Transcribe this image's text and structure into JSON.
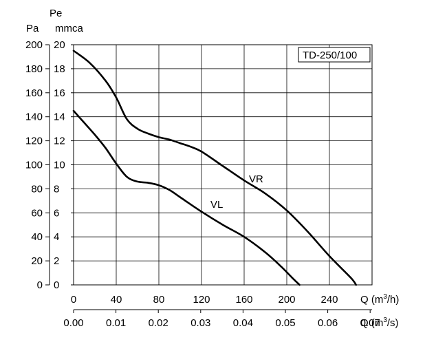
{
  "chart_data": {
    "type": "line",
    "legend_box": "TD-250/100",
    "axes": {
      "y_left_outer": {
        "title": "Pa",
        "range": [
          0,
          200
        ],
        "ticks": [
          "0",
          "20",
          "40",
          "60",
          "80",
          "100",
          "120",
          "140",
          "160",
          "180",
          "200"
        ]
      },
      "y_left_inner": {
        "title_line1": "Pe",
        "title_line2": "mmca",
        "range": [
          0,
          20
        ],
        "ticks": [
          "0",
          "2",
          "4",
          "6",
          "8",
          "10",
          "12",
          "14",
          "16",
          "18",
          "20"
        ]
      },
      "x_bottom_1": {
        "title": "Q (m",
        "unit_sup": "3",
        "unit_tail": "/h)",
        "range": [
          0,
          280
        ],
        "ticks": [
          "0",
          "40",
          "80",
          "120",
          "160",
          "200",
          "240"
        ]
      },
      "x_bottom_2": {
        "title": "Q (m",
        "unit_sup": "3",
        "unit_tail": "/s)",
        "ticks": [
          "0.00",
          "0.01",
          "0.02",
          "0.03",
          "0.04",
          "0.05",
          "0.06",
          "0.07"
        ]
      }
    },
    "grid": true,
    "series": [
      {
        "name": "VR",
        "x": [
          0,
          15,
          30,
          40,
          50,
          60,
          70,
          80,
          90,
          100,
          110,
          120,
          140,
          160,
          180,
          200,
          220,
          240,
          260,
          265
        ],
        "y": [
          195,
          185,
          170,
          156,
          138,
          130,
          126,
          123,
          121,
          118,
          115,
          111,
          99,
          87,
          76,
          62,
          44,
          24,
          6,
          0
        ]
      },
      {
        "name": "VL",
        "x": [
          0,
          10,
          20,
          30,
          40,
          50,
          60,
          70,
          80,
          90,
          100,
          120,
          140,
          160,
          180,
          195,
          205,
          212
        ],
        "y": [
          145,
          135,
          125,
          114,
          101,
          90,
          86,
          85,
          83,
          79,
          73,
          61,
          50,
          40,
          27,
          15,
          6,
          0
        ]
      }
    ]
  }
}
